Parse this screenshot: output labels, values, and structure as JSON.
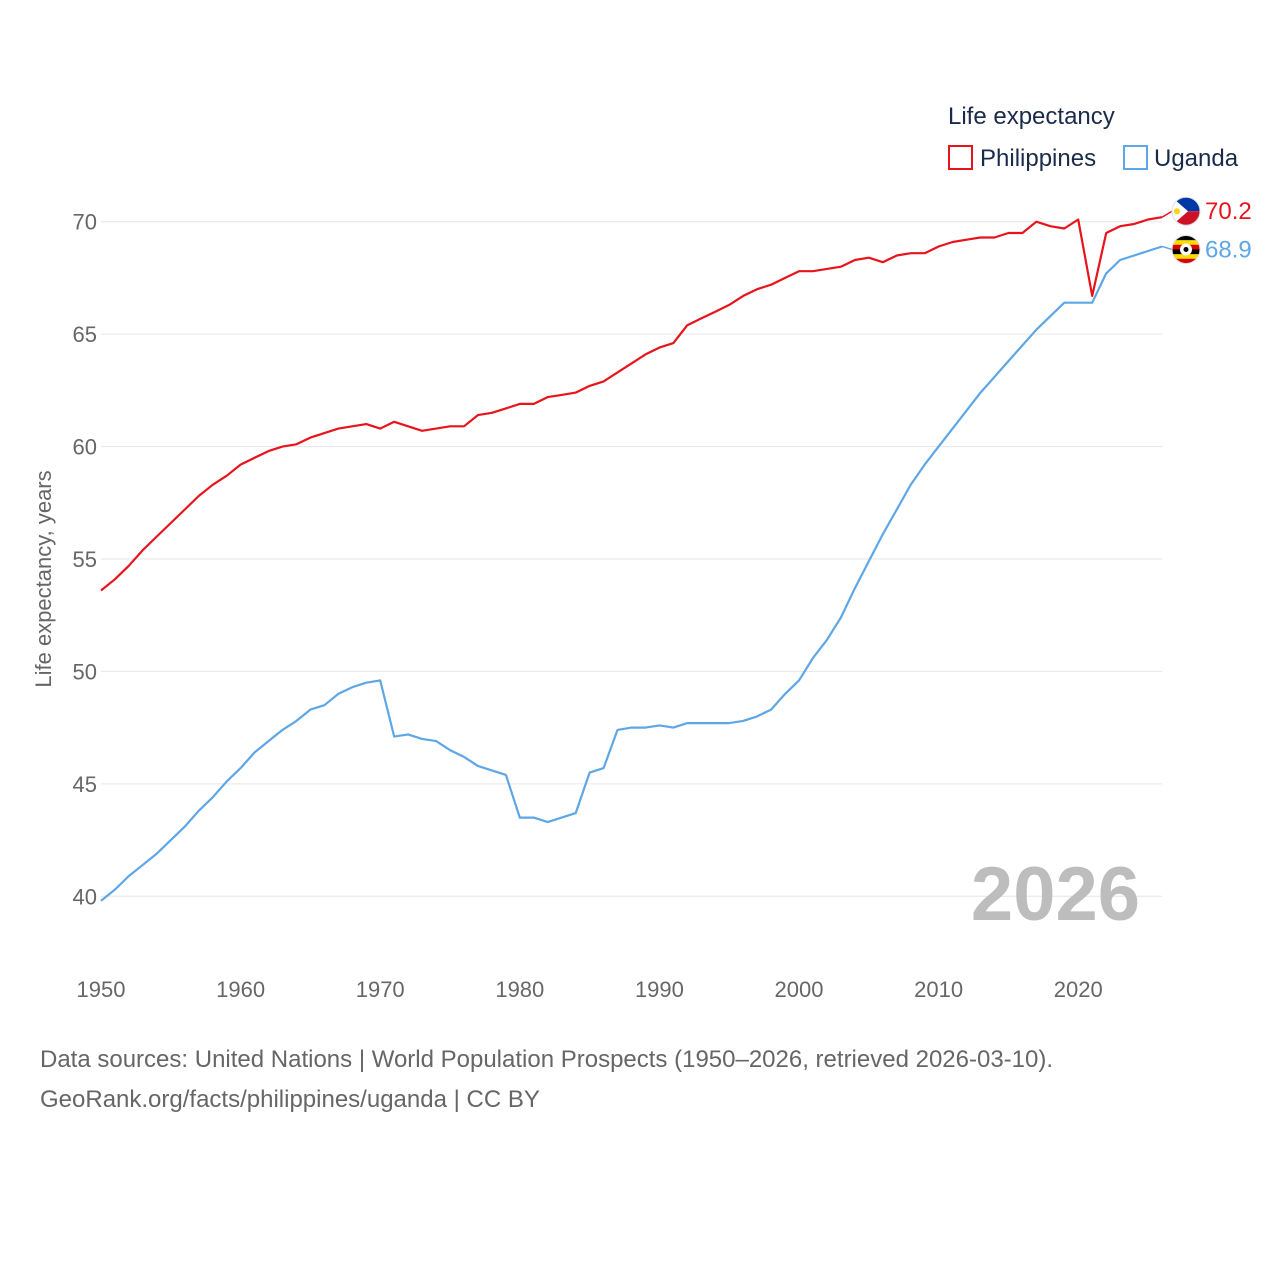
{
  "chart_data": {
    "type": "line",
    "legend_title": "Life expectancy",
    "legend_position": "top-right",
    "ylabel": "Life expectancy, years",
    "xlabel": "",
    "xlim": [
      1950,
      2026
    ],
    "ylim": [
      38.5,
      71.5
    ],
    "x_ticks": [
      1950,
      1960,
      1970,
      1980,
      1990,
      2000,
      2010,
      2020
    ],
    "y_ticks": [
      40,
      45,
      50,
      55,
      60,
      65,
      70
    ],
    "grid": true,
    "current_year_label": "2026",
    "x": [
      1950,
      1951,
      1952,
      1953,
      1954,
      1955,
      1956,
      1957,
      1958,
      1959,
      1960,
      1961,
      1962,
      1963,
      1964,
      1965,
      1966,
      1967,
      1968,
      1969,
      1970,
      1971,
      1972,
      1973,
      1974,
      1975,
      1976,
      1977,
      1978,
      1979,
      1980,
      1981,
      1982,
      1983,
      1984,
      1985,
      1986,
      1987,
      1988,
      1989,
      1990,
      1991,
      1992,
      1993,
      1994,
      1995,
      1996,
      1997,
      1998,
      1999,
      2000,
      2001,
      2002,
      2003,
      2004,
      2005,
      2006,
      2007,
      2008,
      2009,
      2010,
      2011,
      2012,
      2013,
      2014,
      2015,
      2016,
      2017,
      2018,
      2019,
      2020,
      2021,
      2022,
      2023,
      2024,
      2025,
      2026
    ],
    "series": [
      {
        "name": "Philippines",
        "color": "#e8131b",
        "end_value": "70.2",
        "flag": "philippines-flag",
        "values": [
          53.6,
          54.1,
          54.7,
          55.4,
          56.0,
          56.6,
          57.2,
          57.8,
          58.3,
          58.7,
          59.2,
          59.5,
          59.8,
          60.0,
          60.1,
          60.4,
          60.6,
          60.8,
          60.9,
          61.0,
          60.8,
          61.1,
          60.9,
          60.7,
          60.8,
          60.9,
          60.9,
          61.4,
          61.5,
          61.7,
          61.9,
          61.9,
          62.2,
          62.3,
          62.4,
          62.7,
          62.9,
          63.3,
          63.7,
          64.1,
          64.4,
          64.6,
          65.4,
          65.7,
          66.0,
          66.3,
          66.7,
          67.0,
          67.2,
          67.5,
          67.8,
          67.8,
          67.9,
          68.0,
          68.3,
          68.4,
          68.2,
          68.5,
          68.6,
          68.6,
          68.9,
          69.1,
          69.2,
          69.3,
          69.3,
          69.5,
          69.5,
          70.0,
          69.8,
          69.7,
          70.1,
          66.7,
          69.5,
          69.8,
          69.9,
          70.1,
          70.2
        ]
      },
      {
        "name": "Uganda",
        "color": "#5ea6e5",
        "end_value": "68.9",
        "flag": "uganda-flag",
        "values": [
          39.8,
          40.3,
          40.9,
          41.4,
          41.9,
          42.5,
          43.1,
          43.8,
          44.4,
          45.1,
          45.7,
          46.4,
          46.9,
          47.4,
          47.8,
          48.3,
          48.5,
          49.0,
          49.3,
          49.5,
          49.6,
          47.1,
          47.2,
          47.0,
          46.9,
          46.5,
          46.2,
          45.8,
          45.6,
          45.4,
          43.5,
          43.5,
          43.3,
          43.5,
          43.7,
          45.5,
          45.7,
          47.4,
          47.5,
          47.5,
          47.6,
          47.5,
          47.7,
          47.7,
          47.7,
          47.7,
          47.8,
          48.0,
          48.3,
          49.0,
          49.6,
          50.6,
          51.4,
          52.4,
          53.7,
          54.9,
          56.1,
          57.2,
          58.3,
          59.2,
          60.0,
          60.8,
          61.6,
          62.4,
          63.1,
          63.8,
          64.5,
          65.2,
          65.8,
          66.4,
          66.4,
          66.4,
          67.7,
          68.3,
          68.5,
          68.7,
          68.9
        ]
      }
    ]
  },
  "footer": {
    "source_line": "Data sources: United Nations | World Population Prospects (1950–2026, retrieved 2026-03-10).",
    "credit_line": "GeoRank.org/facts/philippines/uganda | CC BY"
  }
}
